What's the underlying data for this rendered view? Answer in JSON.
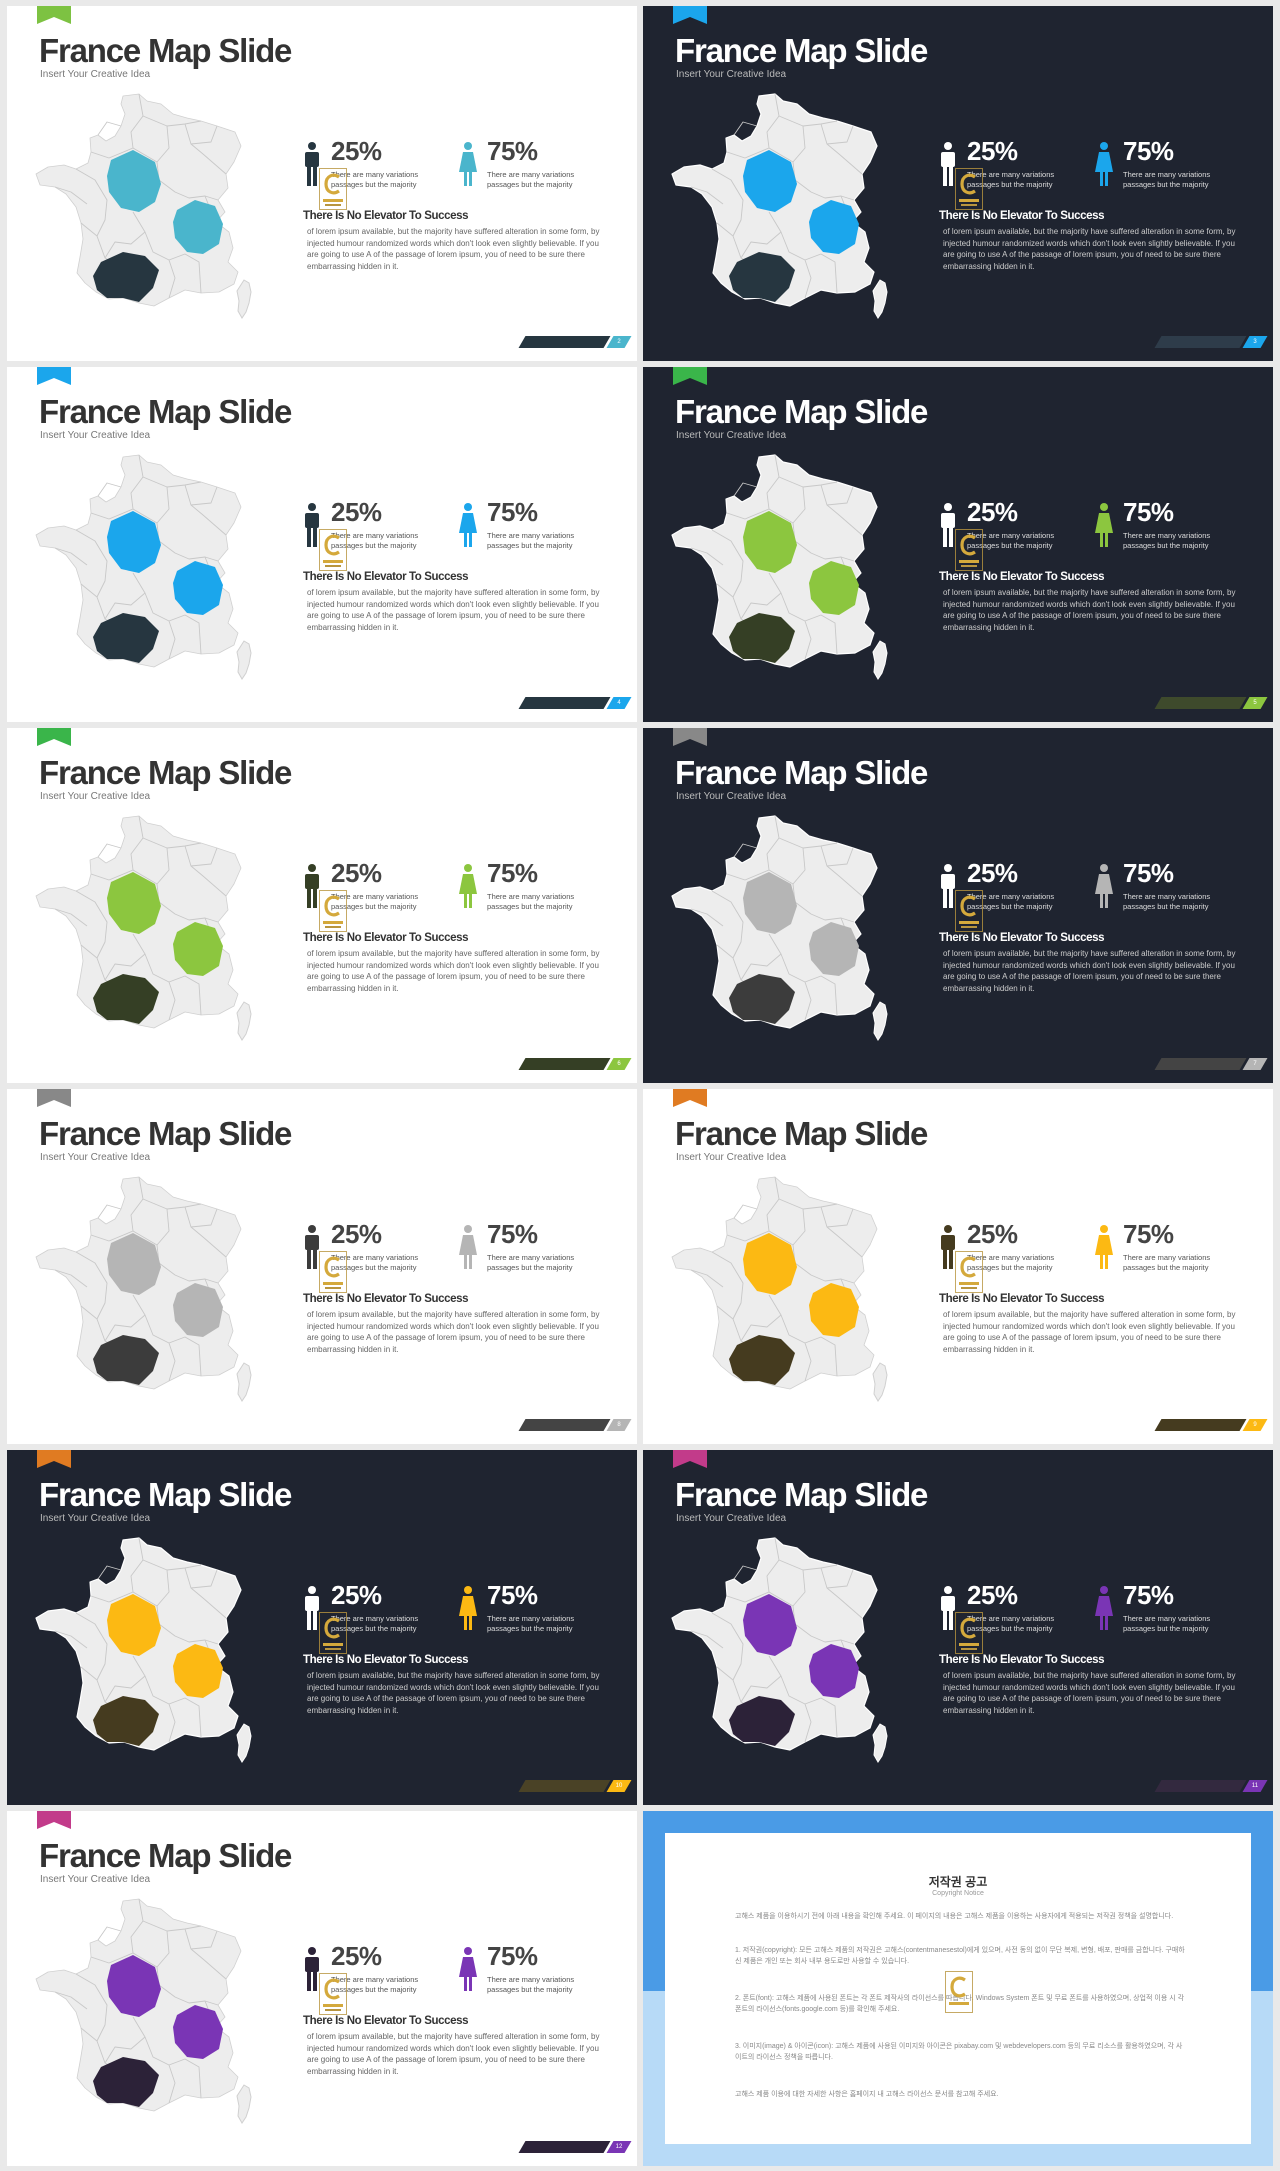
{
  "slides": [
    {
      "theme": "light",
      "accent": "#4ab5cc",
      "dark_region": "#263640",
      "flag_color": "#7dc242",
      "title": "France Map Slide",
      "subtitle": "Insert Your Creative Idea",
      "stat_left": {
        "value": "25%",
        "note": "There are many variations passages but the majority",
        "icon": "male-person-icon",
        "color": "#263640"
      },
      "stat_right": {
        "value": "75%",
        "note": "There are many variations passages but the majority",
        "icon": "female-person-icon",
        "color": "#4ab5cc"
      },
      "heading": "There Is No Elevator To Success",
      "body": "of lorem ipsum available, but the majority have suffered alteration in some form, by injected humour randomized words which don't look even slightly believable. If you are going to use A  of the passage of lorem ipsum, you  of  need to be sure there embarrassing hidden in it.",
      "page": "2",
      "bar_color": "#263640"
    },
    {
      "theme": "dark",
      "accent": "#1ba6ec",
      "dark_region": "#263640",
      "flag_color": "#1ba6ec",
      "title": "France Map Slide",
      "subtitle": "Insert Your Creative Idea",
      "stat_left": {
        "value": "25%",
        "note": "There are many variations passages but the majority",
        "icon": "male-person-icon",
        "color": "#ffffff"
      },
      "stat_right": {
        "value": "75%",
        "note": "There are many variations passages but the majority",
        "icon": "female-person-icon",
        "color": "#1ba6ec"
      },
      "heading": "There Is No Elevator To Success",
      "body": "of lorem ipsum available, but the majority have suffered alteration in some form, by injected humour randomized words which don't look even slightly believable. If you are going to use A  of the passage of lorem ipsum, you  of  need to be sure there embarrassing hidden in it.",
      "page": "3",
      "bar_color": "#2e3c4a"
    },
    {
      "theme": "light",
      "accent": "#1ba6ec",
      "dark_region": "#263640",
      "flag_color": "#1ba6ec",
      "title": "France Map Slide",
      "subtitle": "Insert Your Creative Idea",
      "stat_left": {
        "value": "25%",
        "note": "There are many variations passages but the majority",
        "icon": "male-person-icon",
        "color": "#263640"
      },
      "stat_right": {
        "value": "75%",
        "note": "There are many variations passages but the majority",
        "icon": "female-person-icon",
        "color": "#1ba6ec"
      },
      "heading": "There Is No Elevator To Success",
      "body": "of lorem ipsum available, but the majority have suffered alteration in some form, by injected humour randomized words which don't look even slightly believable. If you are going to use A  of the passage of lorem ipsum, you  of  need to be sure there embarrassing hidden in it.",
      "page": "4",
      "bar_color": "#263640"
    },
    {
      "theme": "dark",
      "accent": "#8cc63f",
      "dark_region": "#353f25",
      "flag_color": "#3ab54a",
      "title": "France Map Slide",
      "subtitle": "Insert Your Creative Idea",
      "stat_left": {
        "value": "25%",
        "note": "There are many variations passages but the majority",
        "icon": "male-person-icon",
        "color": "#ffffff"
      },
      "stat_right": {
        "value": "75%",
        "note": "There are many variations passages but the majority",
        "icon": "female-person-icon",
        "color": "#8cc63f"
      },
      "heading": "There Is No Elevator To Success",
      "body": "of lorem ipsum available, but the majority have suffered alteration in some form, by injected humour randomized words which don't look even slightly believable. If you are going to use A  of the passage of lorem ipsum, you  of  need to be sure there embarrassing hidden in it.",
      "page": "5",
      "bar_color": "#3e4a2c"
    },
    {
      "theme": "light",
      "accent": "#8cc63f",
      "dark_region": "#353f25",
      "flag_color": "#3ab54a",
      "title": "France Map Slide",
      "subtitle": "Insert Your Creative Idea",
      "stat_left": {
        "value": "25%",
        "note": "There are many variations passages but the majority",
        "icon": "male-person-icon",
        "color": "#353f25"
      },
      "stat_right": {
        "value": "75%",
        "note": "There are many variations passages but the majority",
        "icon": "female-person-icon",
        "color": "#8cc63f"
      },
      "heading": "There Is No Elevator To Success",
      "body": "of lorem ipsum available, but the majority have suffered alteration in some form, by injected humour randomized words which don't look even slightly believable. If you are going to use A  of the passage of lorem ipsum, you  of  need to be sure there embarrassing hidden in it.",
      "page": "6",
      "bar_color": "#353f25"
    },
    {
      "theme": "dark",
      "accent": "#b5b5b5",
      "dark_region": "#3c3c3c",
      "flag_color": "#888888",
      "title": "France Map Slide",
      "subtitle": "Insert Your Creative Idea",
      "stat_left": {
        "value": "25%",
        "note": "There are many variations passages but the majority",
        "icon": "male-person-icon",
        "color": "#ffffff"
      },
      "stat_right": {
        "value": "75%",
        "note": "There are many variations passages but the majority",
        "icon": "female-person-icon",
        "color": "#b5b5b5"
      },
      "heading": "There Is No Elevator To Success",
      "body": "of lorem ipsum available, but the majority have suffered alteration in some form, by injected humour randomized words which don't look even slightly believable. If you are going to use A  of the passage of lorem ipsum, you  of  need to be sure there embarrassing hidden in it.",
      "page": "7",
      "bar_color": "#444444"
    },
    {
      "theme": "light",
      "accent": "#b5b5b5",
      "dark_region": "#3c3c3c",
      "flag_color": "#888888",
      "title": "France Map Slide",
      "subtitle": "Insert Your Creative Idea",
      "stat_left": {
        "value": "25%",
        "note": "There are many variations passages but the majority",
        "icon": "male-person-icon",
        "color": "#3c3c3c"
      },
      "stat_right": {
        "value": "75%",
        "note": "There are many variations passages but the majority",
        "icon": "female-person-icon",
        "color": "#b5b5b5"
      },
      "heading": "There Is No Elevator To Success",
      "body": "of lorem ipsum available, but the majority have suffered alteration in some form, by injected humour randomized words which don't look even slightly believable. If you are going to use A  of the passage of lorem ipsum, you  of  need to be sure there embarrassing hidden in it.",
      "page": "8",
      "bar_color": "#444444"
    },
    {
      "theme": "light",
      "accent": "#fcb913",
      "dark_region": "#453b1f",
      "flag_color": "#e07b22",
      "title": "France Map Slide",
      "subtitle": "Insert Your Creative Idea",
      "stat_left": {
        "value": "25%",
        "note": "There are many variations passages but the majority",
        "icon": "male-person-icon",
        "color": "#453b1f"
      },
      "stat_right": {
        "value": "75%",
        "note": "There are many variations passages but the majority",
        "icon": "female-person-icon",
        "color": "#fcb913"
      },
      "heading": "There Is No Elevator To Success",
      "body": "of lorem ipsum available, but the majority have suffered alteration in some form, by injected humour randomized words which don't look even slightly believable. If you are going to use A  of the passage of lorem ipsum, you  of  need to be sure there embarrassing hidden in it.",
      "page": "9",
      "bar_color": "#453b1f"
    },
    {
      "theme": "dark",
      "accent": "#fcb913",
      "dark_region": "#453b1f",
      "flag_color": "#e07b22",
      "title": "France Map Slide",
      "subtitle": "Insert Your Creative Idea",
      "stat_left": {
        "value": "25%",
        "note": "There are many variations passages but the majority",
        "icon": "male-person-icon",
        "color": "#ffffff"
      },
      "stat_right": {
        "value": "75%",
        "note": "There are many variations passages but the majority",
        "icon": "female-person-icon",
        "color": "#fcb913"
      },
      "heading": "There Is No Elevator To Success",
      "body": "of lorem ipsum available, but the majority have suffered alteration in some form, by injected humour randomized words which don't look even slightly believable. If you are going to use A  of the passage of lorem ipsum, you  of  need to be sure there embarrassing hidden in it.",
      "page": "10",
      "bar_color": "#4a4226"
    },
    {
      "theme": "dark",
      "accent": "#7a35b5",
      "dark_region": "#2c2238",
      "flag_color": "#c23b8a",
      "title": "France Map Slide",
      "subtitle": "Insert Your Creative Idea",
      "stat_left": {
        "value": "25%",
        "note": "There are many variations passages but the majority",
        "icon": "male-person-icon",
        "color": "#ffffff"
      },
      "stat_right": {
        "value": "75%",
        "note": "There are many variations passages but the majority",
        "icon": "female-person-icon",
        "color": "#7a35b5"
      },
      "heading": "There Is No Elevator To Success",
      "body": "of lorem ipsum available, but the majority have suffered alteration in some form, by injected humour randomized words which don't look even slightly believable. If you are going to use A  of the passage of lorem ipsum, you  of  need to be sure there embarrassing hidden in it.",
      "page": "11",
      "bar_color": "#33293f"
    },
    {
      "theme": "light",
      "accent": "#7a35b5",
      "dark_region": "#2c2238",
      "flag_color": "#c23b8a",
      "title": "France Map Slide",
      "subtitle": "Insert Your Creative Idea",
      "stat_left": {
        "value": "25%",
        "note": "There are many variations passages but the majority",
        "icon": "male-person-icon",
        "color": "#2c2238"
      },
      "stat_right": {
        "value": "75%",
        "note": "There are many variations passages but the majority",
        "icon": "female-person-icon",
        "color": "#7a35b5"
      },
      "heading": "There Is No Elevator To Success",
      "body": "of lorem ipsum available, but the majority have suffered alteration in some form, by injected humour randomized words which don't look even slightly believable. If you are going to use A  of the passage of lorem ipsum, you  of  need to be sure there embarrassing hidden in it.",
      "page": "12",
      "bar_color": "#2c2238"
    }
  ],
  "notice": {
    "title": "저작권 공고",
    "subtitle": "Copyright Notice",
    "paragraphs": [
      "고해스 제품을 이용하시기 전에 아래 내용을 확인해 주세요. 이 페이지의 내용은 고해스 제품을 이용하는 사용자에게 적용되는 저작권 정책을 설명합니다.",
      "1. 저작권(copyright): 모든 고해스 제품의 저작권은 고해스(contentmanesestol)에게 있으며, 사전 동의 없이 무단 복제, 변형, 배포, 판매를 금합니다. 구매하신 제품은 개인 또는 회사 내부 용도로만 사용할 수 있습니다.",
      "2. 폰트(font): 고해스 제품에 사용된 폰트는 각 폰트 제작사의 라이선스를 따릅니다. Windows System 폰트 및 무료 폰트를 사용하였으며, 상업적 이용 시 각 폰트의 라이선스(fonts.google.com 등)를 확인해 주세요.",
      "3. 이미지(image) & 아이콘(icon): 고해스 제품에 사용된 이미지와 아이콘은 pixabay.com 및 webdevelopers.com 등의 무료 리소스를 활용하였으며, 각 사이트의 라이선스 정책을 따릅니다.",
      "고해스 제품 이용에 대한 자세한 사항은 홈페이지 내 고해스 라이선스 문서를 참고해 주세요."
    ]
  }
}
